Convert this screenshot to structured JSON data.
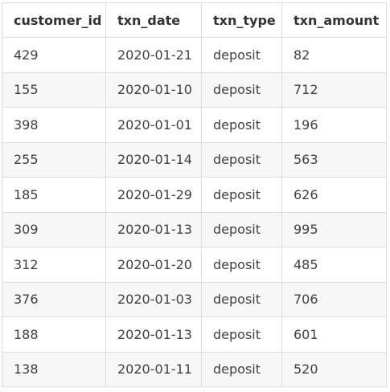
{
  "table": {
    "headers": [
      "customer_id",
      "txn_date",
      "txn_type",
      "txn_amount"
    ],
    "rows": [
      [
        "429",
        "2020-01-21",
        "deposit",
        "82"
      ],
      [
        "155",
        "2020-01-10",
        "deposit",
        "712"
      ],
      [
        "398",
        "2020-01-01",
        "deposit",
        "196"
      ],
      [
        "255",
        "2020-01-14",
        "deposit",
        "563"
      ],
      [
        "185",
        "2020-01-29",
        "deposit",
        "626"
      ],
      [
        "309",
        "2020-01-13",
        "deposit",
        "995"
      ],
      [
        "312",
        "2020-01-20",
        "deposit",
        "485"
      ],
      [
        "376",
        "2020-01-03",
        "deposit",
        "706"
      ],
      [
        "188",
        "2020-01-13",
        "deposit",
        "601"
      ],
      [
        "138",
        "2020-01-11",
        "deposit",
        "520"
      ]
    ]
  }
}
